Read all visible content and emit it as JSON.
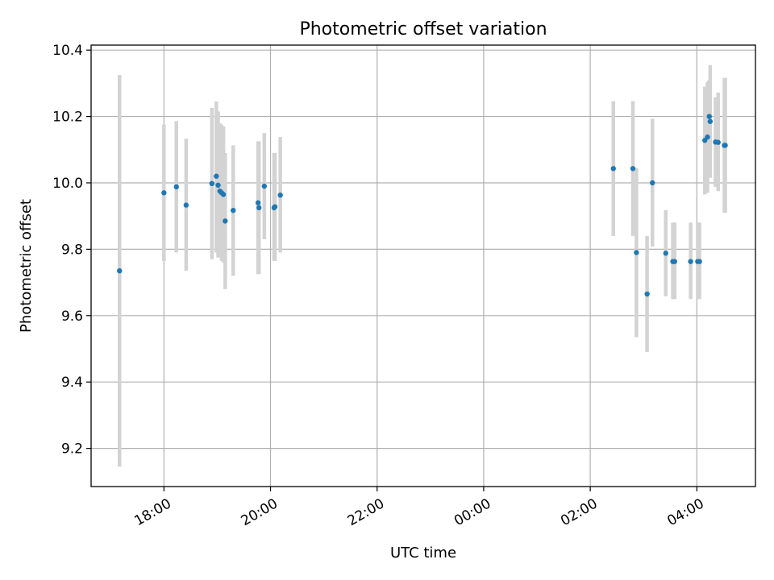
{
  "chart_data": {
    "type": "scatter",
    "title": "Photometric offset variation",
    "xlabel": "UTC time",
    "ylabel": "Photometric offset",
    "x_axis": {
      "kind": "time",
      "range": [
        "2000-01-01T16:38",
        "2000-01-02T05:06"
      ],
      "ticks": [
        {
          "value": "2000-01-01T18:00",
          "label": "18:00"
        },
        {
          "value": "2000-01-01T20:00",
          "label": "20:00"
        },
        {
          "value": "2000-01-01T22:00",
          "label": "22:00"
        },
        {
          "value": "2000-01-02T00:00",
          "label": "00:00"
        },
        {
          "value": "2000-01-02T02:00",
          "label": "02:00"
        },
        {
          "value": "2000-01-02T04:00",
          "label": "04:00"
        }
      ]
    },
    "y_axis": {
      "range": [
        9.085,
        10.415
      ],
      "ticks": [
        {
          "value": 9.2,
          "label": "9.2"
        },
        {
          "value": 9.4,
          "label": "9.4"
        },
        {
          "value": 9.6,
          "label": "9.6"
        },
        {
          "value": 9.8,
          "label": "9.8"
        },
        {
          "value": 10.0,
          "label": "10.0"
        },
        {
          "value": 10.2,
          "label": "10.2"
        },
        {
          "value": 10.4,
          "label": "10.4"
        }
      ]
    },
    "grid": true,
    "colors": {
      "points": "#1f77b4",
      "errorbars": "#d3d3d3",
      "grid": "#b0b0b0"
    },
    "points": [
      {
        "t": "2000-01-01T17:10",
        "y": 9.735,
        "lo": 9.145,
        "hi": 10.325
      },
      {
        "t": "2000-01-01T18:00",
        "y": 9.97,
        "lo": 9.765,
        "hi": 10.175
      },
      {
        "t": "2000-01-01T18:14",
        "y": 9.988,
        "lo": 9.79,
        "hi": 10.186
      },
      {
        "t": "2000-01-01T18:25",
        "y": 9.933,
        "lo": 9.735,
        "hi": 10.133
      },
      {
        "t": "2000-01-01T18:54",
        "y": 9.998,
        "lo": 9.77,
        "hi": 10.226
      },
      {
        "t": "2000-01-01T18:59",
        "y": 10.02,
        "lo": 9.79,
        "hi": 10.245
      },
      {
        "t": "2000-01-01T19:01",
        "y": 9.993,
        "lo": 9.775,
        "hi": 10.215
      },
      {
        "t": "2000-01-01T19:03",
        "y": 9.975,
        "lo": 9.78,
        "hi": 10.18
      },
      {
        "t": "2000-01-01T19:05",
        "y": 9.97,
        "lo": 9.765,
        "hi": 10.175
      },
      {
        "t": "2000-01-01T19:07",
        "y": 9.965,
        "lo": 9.76,
        "hi": 10.17
      },
      {
        "t": "2000-01-01T19:09",
        "y": 9.885,
        "lo": 9.68,
        "hi": 10.09
      },
      {
        "t": "2000-01-01T19:18",
        "y": 9.917,
        "lo": 9.72,
        "hi": 10.113
      },
      {
        "t": "2000-01-01T19:46",
        "y": 9.94,
        "lo": 9.725,
        "hi": 10.125
      },
      {
        "t": "2000-01-01T19:47",
        "y": 9.925,
        "lo": 9.725,
        "hi": 10.125
      },
      {
        "t": "2000-01-01T19:53",
        "y": 9.99,
        "lo": 9.83,
        "hi": 10.15
      },
      {
        "t": "2000-01-01T20:04",
        "y": 9.925,
        "lo": 9.765,
        "hi": 10.09
      },
      {
        "t": "2000-01-01T20:05",
        "y": 9.928,
        "lo": 9.765,
        "hi": 10.09
      },
      {
        "t": "2000-01-01T20:11",
        "y": 9.963,
        "lo": 9.79,
        "hi": 10.138
      },
      {
        "t": "2000-01-02T02:26",
        "y": 10.043,
        "lo": 9.84,
        "hi": 10.246
      },
      {
        "t": "2000-01-02T02:48",
        "y": 10.043,
        "lo": 9.84,
        "hi": 10.246
      },
      {
        "t": "2000-01-02T02:52",
        "y": 9.79,
        "lo": 9.535,
        "hi": 10.045
      },
      {
        "t": "2000-01-02T03:04",
        "y": 9.665,
        "lo": 9.49,
        "hi": 9.84
      },
      {
        "t": "2000-01-02T03:10",
        "y": 10.0,
        "lo": 9.808,
        "hi": 10.193
      },
      {
        "t": "2000-01-02T03:25",
        "y": 9.788,
        "lo": 9.658,
        "hi": 9.918
      },
      {
        "t": "2000-01-02T03:33",
        "y": 9.763,
        "lo": 9.65,
        "hi": 9.88
      },
      {
        "t": "2000-01-02T03:35",
        "y": 9.763,
        "lo": 9.65,
        "hi": 9.88
      },
      {
        "t": "2000-01-02T03:53",
        "y": 9.763,
        "lo": 9.65,
        "hi": 9.88
      },
      {
        "t": "2000-01-02T04:01",
        "y": 9.763,
        "lo": 9.65,
        "hi": 9.88
      },
      {
        "t": "2000-01-02T04:03",
        "y": 9.763,
        "lo": 9.65,
        "hi": 9.88
      },
      {
        "t": "2000-01-02T04:09",
        "y": 10.128,
        "lo": 9.965,
        "hi": 10.29
      },
      {
        "t": "2000-01-02T04:12",
        "y": 10.138,
        "lo": 9.97,
        "hi": 10.305
      },
      {
        "t": "2000-01-02T04:14",
        "y": 10.2,
        "lo": 10.04,
        "hi": 10.31
      },
      {
        "t": "2000-01-02T04:15",
        "y": 10.185,
        "lo": 10.015,
        "hi": 10.355
      },
      {
        "t": "2000-01-02T04:21",
        "y": 10.123,
        "lo": 9.988,
        "hi": 10.258
      },
      {
        "t": "2000-01-02T04:24",
        "y": 10.122,
        "lo": 9.975,
        "hi": 10.272
      },
      {
        "t": "2000-01-02T04:31",
        "y": 10.113,
        "lo": 9.91,
        "hi": 10.316
      },
      {
        "t": "2000-01-02T04:32",
        "y": 10.113,
        "lo": 9.91,
        "hi": 10.316
      }
    ]
  }
}
